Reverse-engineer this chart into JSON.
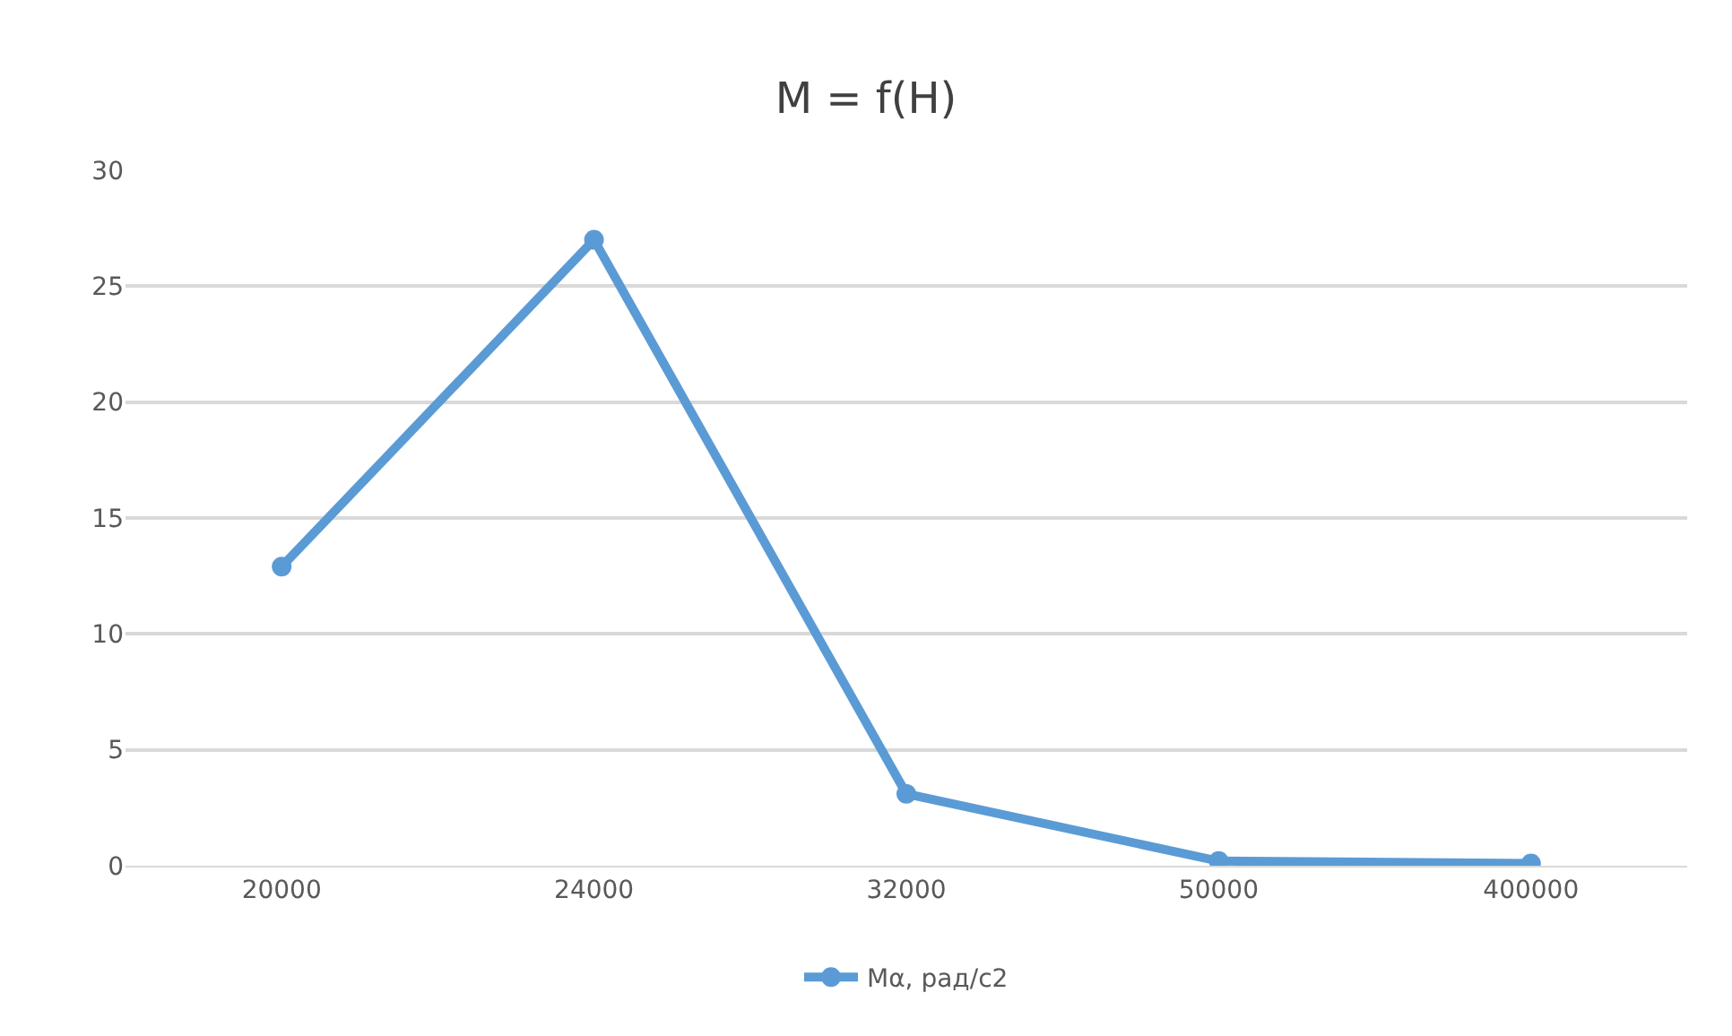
{
  "chart_data": {
    "type": "line",
    "title": "M = f(H)",
    "categories": [
      "20000",
      "24000",
      "32000",
      "50000",
      "400000"
    ],
    "series": [
      {
        "name": "Mα, рад/с2",
        "color": "#5b9bd5",
        "values": [
          12.9,
          27.0,
          3.1,
          0.2,
          0.1
        ]
      }
    ],
    "ylim": [
      0,
      30
    ],
    "yticks": [
      0,
      5,
      10,
      15,
      20,
      25,
      30
    ],
    "grid": "y",
    "legend": "bottom",
    "marker": "circle",
    "line_style": "solid"
  }
}
